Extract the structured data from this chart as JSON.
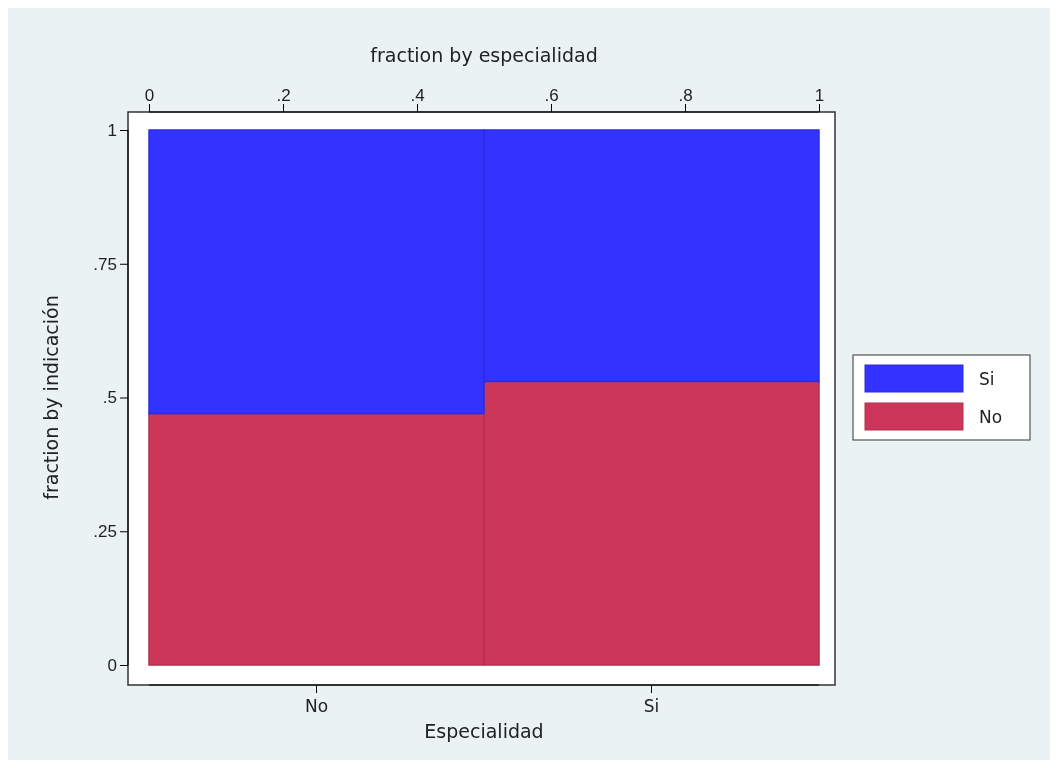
{
  "chart_data": {
    "type": "bar",
    "stacked": true,
    "xlabel": "Especialidad",
    "ylabel": "fraction by indicación",
    "x2label": "fraction by especialidad",
    "categories": [
      "No",
      "Si"
    ],
    "x2lim": [
      0,
      1
    ],
    "x2ticks": [
      0,
      {
        "value": 0.2,
        "label": ".2"
      },
      {
        "value": 0.4,
        "label": ".4"
      },
      {
        "value": 0.6,
        "label": ".6"
      },
      {
        "value": 0.8,
        "label": ".8"
      },
      1
    ],
    "ylim": [
      0,
      1
    ],
    "yticks": [
      0,
      {
        "value": 0.25,
        "label": ".25"
      },
      {
        "value": 0.5,
        "label": ".5"
      },
      {
        "value": 0.75,
        "label": ".75"
      },
      1
    ],
    "series": [
      {
        "name": "No",
        "color": "#cc3759",
        "values": [
          0.47,
          0.53
        ]
      },
      {
        "name": "Si",
        "color": "#3333ff",
        "values": [
          0.53,
          0.47
        ]
      }
    ],
    "legend": "right"
  }
}
